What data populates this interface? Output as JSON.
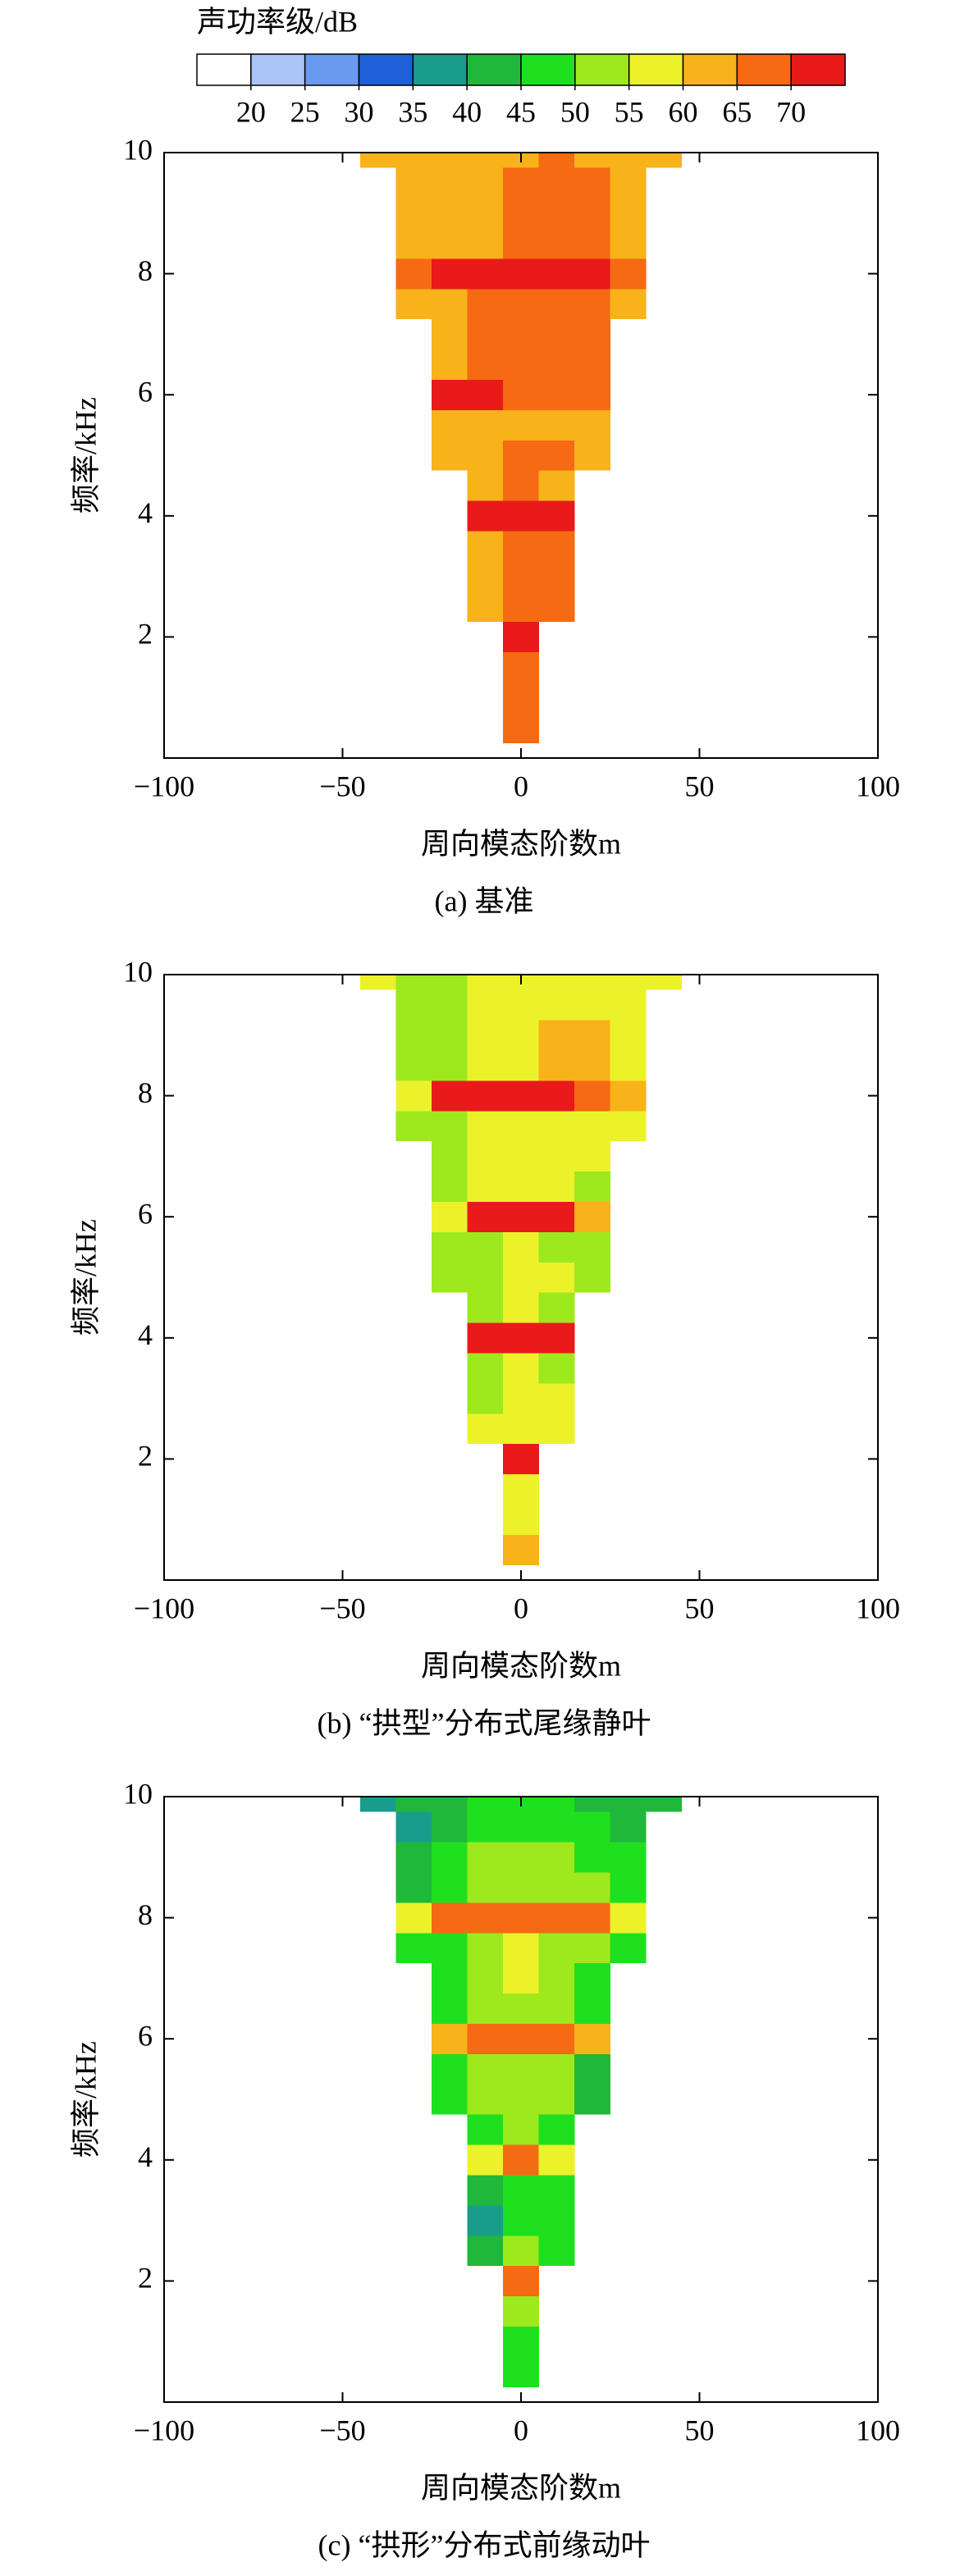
{
  "colorbar": {
    "title": "声功率级/dB",
    "ticks": [
      20,
      25,
      30,
      35,
      40,
      45,
      50,
      55,
      60,
      65,
      70
    ],
    "colors": [
      "#ffffff",
      "#a9c4f5",
      "#6a9af0",
      "#1f5fd8",
      "#1a9c8c",
      "#1fb83a",
      "#1fe01f",
      "#9ee81e",
      "#ecf22a",
      "#f8b21a",
      "#f56a12",
      "#e81a1a"
    ]
  },
  "chart_data": [
    {
      "type": "heatmap",
      "caption": "(a) 基准",
      "xlabel": "周向模态阶数m",
      "ylabel": "频率/kHz",
      "xlim": [
        -100,
        100
      ],
      "ylim": [
        0,
        10
      ],
      "xticks": [
        {
          "value": -100,
          "label": "−100"
        },
        {
          "value": -50,
          "label": "−50"
        },
        0,
        50,
        100
      ],
      "yticks": [
        2,
        4,
        6,
        8,
        10
      ],
      "x": [
        -40,
        -30,
        -20,
        -10,
        0,
        10,
        20,
        30,
        40
      ],
      "y": [
        0.5,
        1,
        1.5,
        2,
        2.5,
        3,
        3.5,
        4,
        4.5,
        5,
        5.5,
        6,
        6.5,
        7,
        7.5,
        8,
        8.5,
        9,
        9.5,
        10
      ],
      "z": [
        [
          null,
          null,
          null,
          null,
          68,
          null,
          null,
          null,
          null
        ],
        [
          null,
          null,
          null,
          null,
          68,
          null,
          null,
          null,
          null
        ],
        [
          null,
          null,
          null,
          null,
          67,
          null,
          null,
          null,
          null
        ],
        [
          null,
          null,
          null,
          null,
          70,
          null,
          null,
          null,
          null
        ],
        [
          null,
          null,
          null,
          64,
          67,
          66,
          null,
          null,
          null
        ],
        [
          null,
          null,
          null,
          63,
          66,
          65,
          null,
          null,
          null
        ],
        [
          null,
          null,
          null,
          64,
          66,
          66,
          null,
          null,
          null
        ],
        [
          null,
          null,
          null,
          70,
          70,
          70,
          null,
          null,
          null
        ],
        [
          null,
          null,
          null,
          62,
          65,
          64,
          null,
          null,
          null
        ],
        [
          null,
          null,
          63,
          63,
          65,
          65,
          64,
          null,
          null
        ],
        [
          null,
          null,
          62,
          62,
          64,
          64,
          63,
          null,
          null
        ],
        [
          null,
          null,
          70,
          70,
          69,
          69,
          68,
          null,
          null
        ],
        [
          null,
          null,
          64,
          66,
          66,
          67,
          66,
          null,
          null
        ],
        [
          null,
          null,
          63,
          65,
          66,
          67,
          66,
          null,
          null
        ],
        [
          null,
          62,
          64,
          65,
          66,
          67,
          66,
          62,
          null
        ],
        [
          null,
          69,
          70,
          70,
          70,
          70,
          70,
          69,
          null
        ],
        [
          null,
          61,
          63,
          64,
          66,
          66,
          65,
          62,
          null
        ],
        [
          null,
          61,
          63,
          64,
          65,
          66,
          66,
          62,
          null
        ],
        [
          null,
          62,
          63,
          64,
          65,
          65,
          65,
          63,
          null
        ],
        [
          60,
          61,
          63,
          64,
          64,
          65,
          64,
          63,
          60
        ]
      ]
    },
    {
      "type": "heatmap",
      "caption": "(b) “拱型”分布式尾缘静叶",
      "xlabel": "周向模态阶数m",
      "ylabel": "频率/kHz",
      "xlim": [
        -100,
        100
      ],
      "ylim": [
        0,
        10
      ],
      "xticks": [
        {
          "value": -100,
          "label": "−100"
        },
        {
          "value": -50,
          "label": "−50"
        },
        0,
        50,
        100
      ],
      "yticks": [
        2,
        4,
        6,
        8,
        10
      ],
      "x": [
        -40,
        -30,
        -20,
        -10,
        0,
        10,
        20,
        30,
        40
      ],
      "y": [
        0.5,
        1,
        1.5,
        2,
        2.5,
        3,
        3.5,
        4,
        4.5,
        5,
        5.5,
        6,
        6.5,
        7,
        7.5,
        8,
        8.5,
        9,
        9.5,
        10
      ],
      "z": [
        [
          null,
          null,
          null,
          null,
          62,
          null,
          null,
          null,
          null
        ],
        [
          null,
          null,
          null,
          null,
          58,
          null,
          null,
          null,
          null
        ],
        [
          null,
          null,
          null,
          null,
          57,
          null,
          null,
          null,
          null
        ],
        [
          null,
          null,
          null,
          null,
          70,
          null,
          null,
          null,
          null
        ],
        [
          null,
          null,
          null,
          55,
          57,
          55,
          null,
          null,
          null
        ],
        [
          null,
          null,
          null,
          54,
          56,
          55,
          null,
          null,
          null
        ],
        [
          null,
          null,
          null,
          53,
          56,
          54,
          null,
          null,
          null
        ],
        [
          null,
          null,
          null,
          70,
          70,
          70,
          null,
          null,
          null
        ],
        [
          null,
          null,
          null,
          53,
          55,
          54,
          null,
          null,
          null
        ],
        [
          null,
          null,
          52,
          54,
          56,
          55,
          53,
          null,
          null
        ],
        [
          null,
          null,
          51,
          53,
          55,
          54,
          52,
          null,
          null
        ],
        [
          null,
          null,
          58,
          70,
          70,
          70,
          60,
          null,
          null
        ],
        [
          null,
          null,
          52,
          55,
          56,
          56,
          54,
          null,
          null
        ],
        [
          null,
          null,
          53,
          55,
          57,
          57,
          55,
          null,
          null
        ],
        [
          null,
          52,
          54,
          55,
          57,
          57,
          56,
          55,
          null
        ],
        [
          null,
          56,
          70,
          70,
          70,
          70,
          69,
          60,
          null
        ],
        [
          null,
          51,
          54,
          56,
          58,
          60,
          60,
          55,
          null
        ],
        [
          null,
          52,
          54,
          56,
          58,
          62,
          60,
          56,
          null
        ],
        [
          null,
          51,
          53,
          55,
          57,
          58,
          57,
          55,
          null
        ],
        [
          55,
          52,
          54,
          56,
          57,
          58,
          57,
          56,
          57
        ]
      ]
    },
    {
      "type": "heatmap",
      "caption": "(c) “拱形”分布式前缘动叶",
      "xlabel": "周向模态阶数m",
      "ylabel": "频率/kHz",
      "xlim": [
        -100,
        100
      ],
      "ylim": [
        0,
        10
      ],
      "xticks": [
        {
          "value": -100,
          "label": "−100"
        },
        {
          "value": -50,
          "label": "−50"
        },
        0,
        50,
        100
      ],
      "yticks": [
        2,
        4,
        6,
        8,
        10
      ],
      "x": [
        -40,
        -30,
        -20,
        -10,
        0,
        10,
        20,
        30,
        40
      ],
      "y": [
        0.5,
        1,
        1.5,
        2,
        2.5,
        3,
        3.5,
        4,
        4.5,
        5,
        5.5,
        6,
        6.5,
        7,
        7.5,
        8,
        8.5,
        9,
        9.5,
        10
      ],
      "z": [
        [
          null,
          null,
          null,
          null,
          47,
          null,
          null,
          null,
          null
        ],
        [
          null,
          null,
          null,
          null,
          48,
          null,
          null,
          null,
          null
        ],
        [
          null,
          null,
          null,
          null,
          50,
          null,
          null,
          null,
          null
        ],
        [
          null,
          null,
          null,
          null,
          66,
          null,
          null,
          null,
          null
        ],
        [
          null,
          null,
          null,
          40,
          50,
          47,
          null,
          null,
          null
        ],
        [
          null,
          null,
          null,
          38,
          48,
          46,
          null,
          null,
          null
        ],
        [
          null,
          null,
          null,
          40,
          47,
          45,
          null,
          null,
          null
        ],
        [
          null,
          null,
          null,
          55,
          66,
          55,
          null,
          null,
          null
        ],
        [
          null,
          null,
          null,
          45,
          50,
          48,
          null,
          null,
          null
        ],
        [
          null,
          null,
          47,
          50,
          52,
          50,
          44,
          null,
          null
        ],
        [
          null,
          null,
          48,
          51,
          53,
          50,
          40,
          null,
          null
        ],
        [
          null,
          null,
          60,
          66,
          67,
          66,
          62,
          null,
          null
        ],
        [
          null,
          null,
          48,
          52,
          54,
          52,
          46,
          null,
          null
        ],
        [
          null,
          null,
          47,
          52,
          55,
          53,
          49,
          null,
          null
        ],
        [
          null,
          46,
          49,
          53,
          55,
          54,
          52,
          48,
          null
        ],
        [
          null,
          58,
          66,
          67,
          67,
          66,
          65,
          58,
          null
        ],
        [
          null,
          43,
          48,
          52,
          54,
          53,
          50,
          47,
          null
        ],
        [
          null,
          40,
          46,
          50,
          52,
          51,
          48,
          45,
          null
        ],
        [
          null,
          38,
          44,
          48,
          49,
          48,
          46,
          44,
          null
        ],
        [
          36,
          40,
          44,
          46,
          46,
          45,
          44,
          42,
          44
        ]
      ]
    }
  ]
}
